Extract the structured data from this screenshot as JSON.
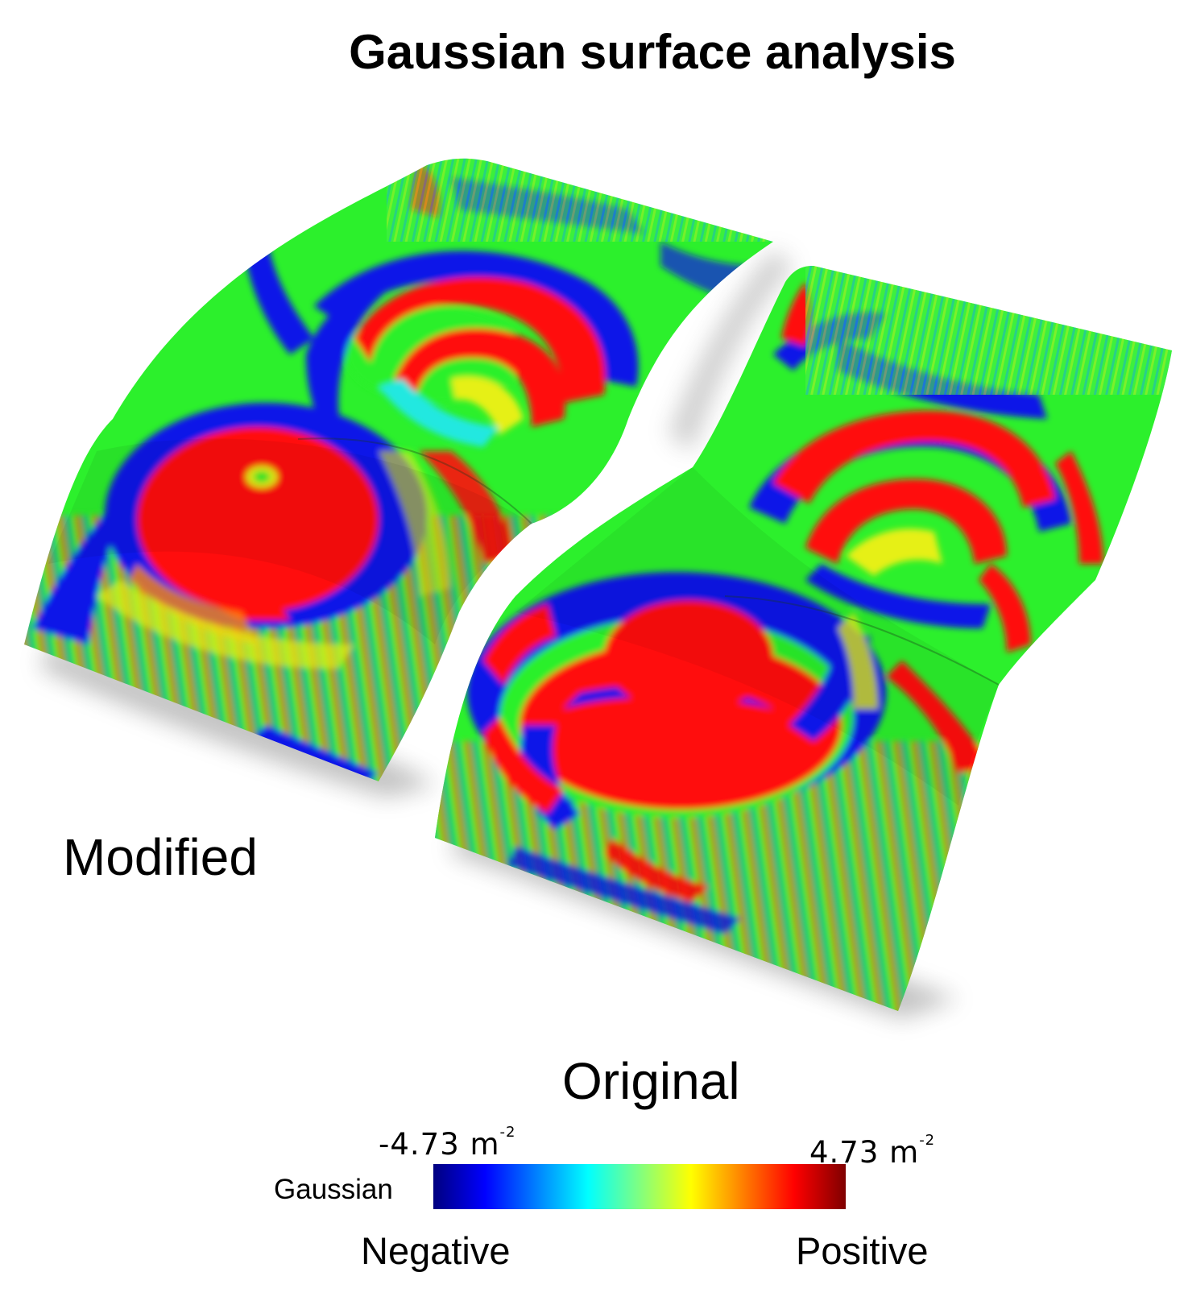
{
  "title": "Gaussian surface analysis",
  "labels": {
    "modified": "Modified",
    "original": "Original"
  },
  "colorbar": {
    "name": "Gaussian",
    "min_value": "-4.73 m",
    "max_value": "4.73 m",
    "exponent": "-2",
    "left_word": "Negative",
    "right_word": "Positive",
    "colors": [
      "#00007f",
      "#0000ff",
      "#0080ff",
      "#00ffff",
      "#80ff80",
      "#ffff00",
      "#ff8000",
      "#ff0000",
      "#7f0000"
    ]
  },
  "palette": {
    "blue": "#0a14e8",
    "green": "#2cf02c",
    "red": "#ff0a0a",
    "cyan": "#20e8e0",
    "yellow": "#e6f018"
  }
}
